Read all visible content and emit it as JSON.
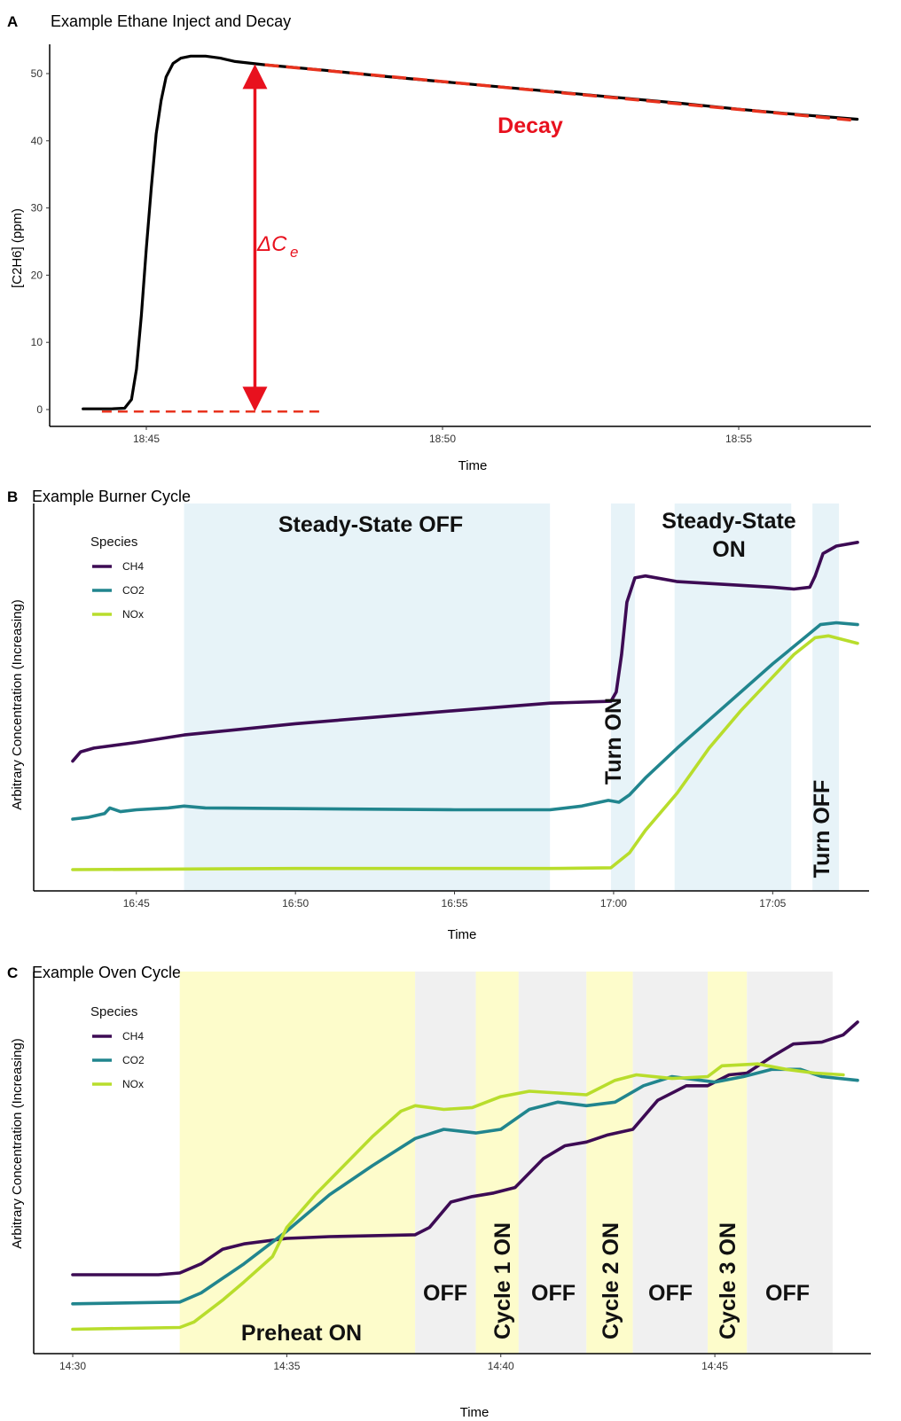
{
  "chart_data": [
    {
      "panel": "A",
      "type": "line",
      "title": "Example Ethane Inject and Decay",
      "xlabel": "Time",
      "ylabel": "[C2H6] (ppm)",
      "xlim": [
        "18:43:40",
        "18:57:10"
      ],
      "ylim": [
        -1.5,
        55
      ],
      "xticks": [
        {
          "t": "18:45:00",
          "label": "18:45"
        },
        {
          "t": "18:50:00",
          "label": "18:50"
        },
        {
          "t": "18:55:00",
          "label": "18:55"
        }
      ],
      "yticks": [
        0,
        10,
        20,
        30,
        40,
        50
      ],
      "grid": false,
      "series": [
        {
          "color": "#000000",
          "points": [
            [
              "18:43:56",
              0.1
            ],
            [
              "18:44:10",
              0.1
            ],
            [
              "18:44:25",
              0.1
            ],
            [
              "18:44:38",
              0.2
            ],
            [
              "18:44:45",
              1.5
            ],
            [
              "18:44:50",
              6
            ],
            [
              "18:44:55",
              14
            ],
            [
              "18:45:00",
              24
            ],
            [
              "18:45:05",
              33
            ],
            [
              "18:45:10",
              41
            ],
            [
              "18:45:15",
              46
            ],
            [
              "18:45:20",
              49.5
            ],
            [
              "18:45:27",
              51.5
            ],
            [
              "18:45:35",
              52.3
            ],
            [
              "18:45:45",
              52.6
            ],
            [
              "18:46:00",
              52.6
            ],
            [
              "18:46:15",
              52.3
            ],
            [
              "18:46:30",
              51.8
            ],
            [
              "18:47:00",
              51.3
            ],
            [
              "18:48:00",
              50.5
            ],
            [
              "18:49:00",
              49.6
            ],
            [
              "18:50:00",
              48.8
            ],
            [
              "18:51:00",
              48.0
            ],
            [
              "18:52:00",
              47.2
            ],
            [
              "18:53:00",
              46.4
            ],
            [
              "18:54:00",
              45.6
            ],
            [
              "18:55:00",
              44.7
            ],
            [
              "18:56:00",
              43.9
            ],
            [
              "18:57:00",
              43.2
            ]
          ]
        }
      ],
      "annotations": {
        "decay_label": "Decay",
        "decay_fit": {
          "color": "#e8331e",
          "from": [
            "18:47:00",
            51.3
          ],
          "to": [
            "18:57:00",
            43.0
          ]
        },
        "baseline": {
          "color": "#e8331e",
          "from": [
            "18:44:15",
            -0.3
          ],
          "to": [
            "18:48:00",
            -0.3
          ]
        },
        "arrow": {
          "color": "#e8111e",
          "t": "18:46:50",
          "y_from": -0.3,
          "y_to": 51.4
        },
        "delta_label": "ΔC",
        "delta_subscript": "e"
      }
    },
    {
      "panel": "B",
      "type": "line",
      "title": "Example Burner Cycle",
      "xlabel": "Time",
      "ylabel": "Arbitrary Concentration (Increasing)",
      "xlim": [
        "16:43:00",
        "17:07:40"
      ],
      "ylim": [
        0,
        1
      ],
      "xticks": [
        {
          "t": "16:45:00",
          "label": "16:45"
        },
        {
          "t": "16:50:00",
          "label": "16:50"
        },
        {
          "t": "16:55:00",
          "label": "16:55"
        },
        {
          "t": "17:00:00",
          "label": "17:00"
        },
        {
          "t": "17:05:00",
          "label": "17:05"
        }
      ],
      "grid": false,
      "legend": {
        "title": "Species",
        "position": "top-left"
      },
      "shaded_regions": [
        {
          "start": "16:46:30",
          "end": "16:58:00",
          "label": "Steady-State OFF",
          "color": "#e7f3f8"
        },
        {
          "start": "16:59:55",
          "end": "17:00:40",
          "label": "Turn ON",
          "color": "#e7f3f8"
        },
        {
          "start": "17:01:55",
          "end": "17:05:35",
          "label": "Steady-State ON",
          "color": "#e7f3f8"
        },
        {
          "start": "17:06:15",
          "end": "17:07:05",
          "label": "Turn OFF",
          "color": "#e7f3f8"
        }
      ],
      "series": [
        {
          "name": "CH4",
          "color": "#3d0b54",
          "points": [
            [
              "16:43:00",
              0.335
            ],
            [
              "16:43:15",
              0.36
            ],
            [
              "16:43:40",
              0.37
            ],
            [
              "16:45:00",
              0.385
            ],
            [
              "16:46:30",
              0.405
            ],
            [
              "16:50:00",
              0.435
            ],
            [
              "16:55:00",
              0.47
            ],
            [
              "16:58:00",
              0.49
            ],
            [
              "16:59:55",
              0.495
            ],
            [
              "17:00:05",
              0.52
            ],
            [
              "17:00:15",
              0.62
            ],
            [
              "17:00:25",
              0.76
            ],
            [
              "17:00:40",
              0.825
            ],
            [
              "17:01:00",
              0.83
            ],
            [
              "17:02:00",
              0.815
            ],
            [
              "17:03:00",
              0.81
            ],
            [
              "17:04:00",
              0.805
            ],
            [
              "17:05:00",
              0.8
            ],
            [
              "17:05:40",
              0.795
            ],
            [
              "17:06:10",
              0.8
            ],
            [
              "17:06:20",
              0.83
            ],
            [
              "17:06:35",
              0.89
            ],
            [
              "17:07:00",
              0.91
            ],
            [
              "17:07:40",
              0.92
            ]
          ]
        },
        {
          "name": "CO2",
          "color": "#21858e",
          "points": [
            [
              "16:43:00",
              0.18
            ],
            [
              "16:43:30",
              0.185
            ],
            [
              "16:44:00",
              0.195
            ],
            [
              "16:44:10",
              0.21
            ],
            [
              "16:44:30",
              0.2
            ],
            [
              "16:45:00",
              0.205
            ],
            [
              "16:46:00",
              0.21
            ],
            [
              "16:46:30",
              0.215
            ],
            [
              "16:47:10",
              0.21
            ],
            [
              "16:50:00",
              0.208
            ],
            [
              "16:55:00",
              0.205
            ],
            [
              "16:58:00",
              0.205
            ],
            [
              "16:59:00",
              0.215
            ],
            [
              "16:59:50",
              0.23
            ],
            [
              "17:00:10",
              0.225
            ],
            [
              "17:00:30",
              0.245
            ],
            [
              "17:01:00",
              0.29
            ],
            [
              "17:02:00",
              0.37
            ],
            [
              "17:03:00",
              0.445
            ],
            [
              "17:04:00",
              0.52
            ],
            [
              "17:05:00",
              0.595
            ],
            [
              "17:06:00",
              0.665
            ],
            [
              "17:06:30",
              0.7
            ],
            [
              "17:07:00",
              0.705
            ],
            [
              "17:07:40",
              0.7
            ]
          ]
        },
        {
          "name": "NOx",
          "color": "#b8dd2c",
          "points": [
            [
              "16:43:00",
              0.045
            ],
            [
              "16:50:00",
              0.048
            ],
            [
              "16:55:00",
              0.048
            ],
            [
              "16:58:00",
              0.048
            ],
            [
              "16:59:55",
              0.05
            ],
            [
              "17:00:30",
              0.09
            ],
            [
              "17:01:00",
              0.15
            ],
            [
              "17:02:00",
              0.25
            ],
            [
              "17:03:00",
              0.37
            ],
            [
              "17:04:00",
              0.47
            ],
            [
              "17:05:00",
              0.56
            ],
            [
              "17:05:40",
              0.62
            ],
            [
              "17:06:20",
              0.665
            ],
            [
              "17:06:45",
              0.67
            ],
            [
              "17:07:40",
              0.65
            ]
          ]
        }
      ]
    },
    {
      "panel": "C",
      "type": "line",
      "title": "Example Oven Cycle",
      "xlabel": "Time",
      "ylabel": "Arbitrary Concentration (Increasing)",
      "xlim": [
        "14:30:00",
        "14:48:20"
      ],
      "ylim": [
        0,
        1
      ],
      "xticks": [
        {
          "t": "14:30:00",
          "label": "14:30"
        },
        {
          "t": "14:35:00",
          "label": "14:35"
        },
        {
          "t": "14:40:00",
          "label": "14:40"
        },
        {
          "t": "14:45:00",
          "label": "14:45"
        }
      ],
      "grid": false,
      "legend": {
        "title": "Species",
        "position": "top-left"
      },
      "shaded_regions": [
        {
          "start": "14:32:30",
          "end": "14:38:00",
          "label": "Preheat ON",
          "color": "#fdfccb"
        },
        {
          "start": "14:38:00",
          "end": "14:39:25",
          "label": "OFF",
          "color": "#f0f0f0"
        },
        {
          "start": "14:39:25",
          "end": "14:40:25",
          "label": "Cycle 1 ON",
          "color": "#fdfccb"
        },
        {
          "start": "14:40:25",
          "end": "14:42:00",
          "label": "OFF",
          "color": "#f0f0f0"
        },
        {
          "start": "14:42:00",
          "end": "14:43:05",
          "label": "Cycle 2 ON",
          "color": "#fdfccb"
        },
        {
          "start": "14:43:05",
          "end": "14:44:50",
          "label": "OFF",
          "color": "#f0f0f0"
        },
        {
          "start": "14:44:50",
          "end": "14:45:45",
          "label": "Cycle 3 ON",
          "color": "#fdfccb"
        },
        {
          "start": "14:45:45",
          "end": "14:47:45",
          "label": "OFF",
          "color": "#f0f0f0"
        }
      ],
      "series": [
        {
          "name": "CH4",
          "color": "#3d0b54",
          "points": [
            [
              "14:30:00",
              0.2
            ],
            [
              "14:32:00",
              0.2
            ],
            [
              "14:32:30",
              0.205
            ],
            [
              "14:33:00",
              0.23
            ],
            [
              "14:33:30",
              0.27
            ],
            [
              "14:34:00",
              0.285
            ],
            [
              "14:35:00",
              0.3
            ],
            [
              "14:36:00",
              0.305
            ],
            [
              "14:38:00",
              0.31
            ],
            [
              "14:38:20",
              0.33
            ],
            [
              "14:38:50",
              0.4
            ],
            [
              "14:39:20",
              0.415
            ],
            [
              "14:39:50",
              0.425
            ],
            [
              "14:40:20",
              0.44
            ],
            [
              "14:41:00",
              0.52
            ],
            [
              "14:41:30",
              0.555
            ],
            [
              "14:42:00",
              0.565
            ],
            [
              "14:42:30",
              0.585
            ],
            [
              "14:43:05",
              0.6
            ],
            [
              "14:43:40",
              0.68
            ],
            [
              "14:44:20",
              0.72
            ],
            [
              "14:44:50",
              0.72
            ],
            [
              "14:45:20",
              0.75
            ],
            [
              "14:45:45",
              0.755
            ],
            [
              "14:46:20",
              0.8
            ],
            [
              "14:46:50",
              0.835
            ],
            [
              "14:47:30",
              0.84
            ],
            [
              "14:48:00",
              0.86
            ],
            [
              "14:48:20",
              0.895
            ]
          ]
        },
        {
          "name": "CO2",
          "color": "#21858e",
          "points": [
            [
              "14:30:00",
              0.12
            ],
            [
              "14:32:30",
              0.125
            ],
            [
              "14:33:00",
              0.15
            ],
            [
              "14:34:00",
              0.23
            ],
            [
              "14:35:00",
              0.32
            ],
            [
              "14:36:00",
              0.42
            ],
            [
              "14:37:00",
              0.5
            ],
            [
              "14:38:00",
              0.575
            ],
            [
              "14:38:40",
              0.6
            ],
            [
              "14:39:25",
              0.59
            ],
            [
              "14:40:00",
              0.6
            ],
            [
              "14:40:40",
              0.655
            ],
            [
              "14:41:20",
              0.675
            ],
            [
              "14:42:00",
              0.665
            ],
            [
              "14:42:40",
              0.675
            ],
            [
              "14:43:20",
              0.72
            ],
            [
              "14:44:00",
              0.745
            ],
            [
              "14:45:00",
              0.73
            ],
            [
              "14:45:40",
              0.745
            ],
            [
              "14:46:20",
              0.765
            ],
            [
              "14:47:00",
              0.765
            ],
            [
              "14:47:30",
              0.745
            ],
            [
              "14:48:20",
              0.735
            ]
          ]
        },
        {
          "name": "NOx",
          "color": "#b8dd2c",
          "points": [
            [
              "14:30:00",
              0.05
            ],
            [
              "14:32:30",
              0.055
            ],
            [
              "14:32:50",
              0.07
            ],
            [
              "14:33:30",
              0.13
            ],
            [
              "14:34:00",
              0.18
            ],
            [
              "14:34:40",
              0.25
            ],
            [
              "14:35:00",
              0.33
            ],
            [
              "14:35:40",
              0.42
            ],
            [
              "14:36:20",
              0.5
            ],
            [
              "14:37:00",
              0.58
            ],
            [
              "14:37:40",
              0.65
            ],
            [
              "14:38:00",
              0.665
            ],
            [
              "14:38:40",
              0.655
            ],
            [
              "14:39:20",
              0.66
            ],
            [
              "14:40:00",
              0.69
            ],
            [
              "14:40:40",
              0.705
            ],
            [
              "14:41:20",
              0.7
            ],
            [
              "14:42:00",
              0.695
            ],
            [
              "14:42:40",
              0.735
            ],
            [
              "14:43:10",
              0.75
            ],
            [
              "14:44:00",
              0.74
            ],
            [
              "14:44:50",
              0.745
            ],
            [
              "14:45:10",
              0.775
            ],
            [
              "14:46:00",
              0.78
            ],
            [
              "14:46:40",
              0.765
            ],
            [
              "14:47:20",
              0.755
            ],
            [
              "14:48:00",
              0.75
            ]
          ]
        }
      ]
    }
  ]
}
